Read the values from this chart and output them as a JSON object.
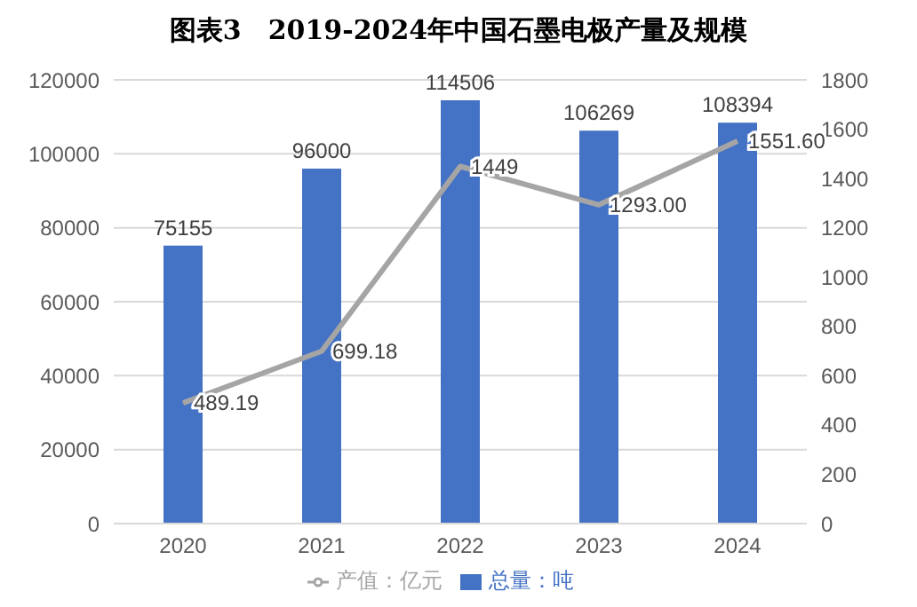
{
  "chart_data": {
    "type": "bar",
    "title": "图表3　2019-2024年中国石墨电极产量及规模",
    "categories": [
      "2020",
      "2021",
      "2022",
      "2023",
      "2024"
    ],
    "series": [
      {
        "name": "总量：吨",
        "color": "#4472c4",
        "values": [
          75155,
          96000,
          114506,
          106269,
          108394
        ],
        "value_labels": [
          "75155",
          "96000",
          "114506",
          "106269",
          "108394"
        ]
      },
      {
        "name": "产值：亿元",
        "type": "line",
        "axis": "y2",
        "color": "#a5a5a5",
        "values": [
          489.19,
          699.18,
          1449,
          1293,
          1551.6
        ],
        "value_labels": [
          "489.19",
          "699.18",
          "1449",
          "1293.00",
          "1551.60"
        ]
      }
    ],
    "ylim": [
      0,
      120000
    ],
    "yticks": [
      0,
      20000,
      40000,
      60000,
      80000,
      100000,
      120000
    ],
    "y2lim": [
      0,
      1800
    ],
    "y2ticks": [
      0,
      200,
      400,
      600,
      800,
      1000,
      1200,
      1400,
      1600,
      1800
    ],
    "grid": "y",
    "legend": "bottom",
    "marker": "none",
    "line_style": "solid"
  }
}
